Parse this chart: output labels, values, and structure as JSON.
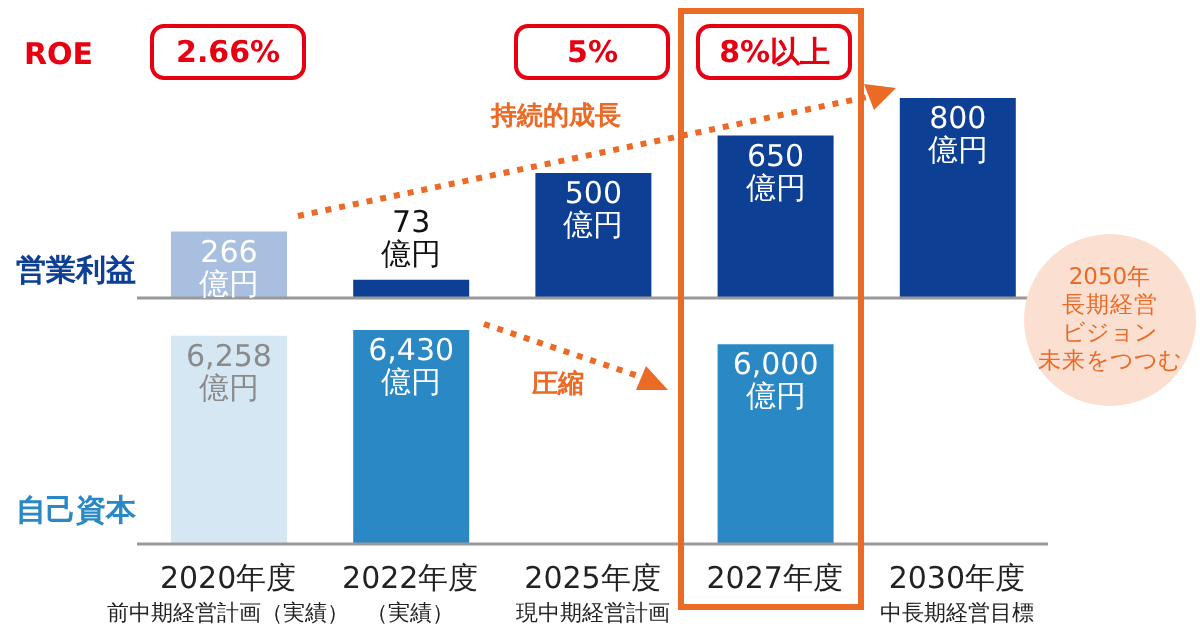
{
  "chart_data": [
    {
      "type": "other",
      "title": "ROE",
      "categories": [
        null,
        null,
        null,
        null,
        null
      ],
      "values": [
        2.66,
        null,
        5,
        8,
        null
      ],
      "value_labels": [
        "2.66%",
        null,
        "5%",
        "8%以上",
        null
      ],
      "color": "#e60012"
    },
    {
      "type": "bar",
      "ylabel": "営業利益",
      "categories": [
        null,
        null,
        null,
        null,
        null
      ],
      "values": [
        266,
        73,
        500,
        650,
        800
      ],
      "colors": [
        "#a9bfdf",
        "#0d3f94",
        "#0d3f94",
        "#0d3f94",
        "#0d3f94"
      ],
      "value_labels": [
        "266\n億円",
        "73\n億円",
        "500\n億円",
        "650\n億円",
        "800\n億円"
      ],
      "tick_labels": false,
      "annotations": [
        "持続的成長",
        "2050年",
        "長期経営",
        "ビジョン",
        "未来をつつむ"
      ]
    },
    {
      "type": "bar",
      "ylabel": "自己資本",
      "categories": [
        "2020年度",
        "2022年度",
        "2025年度",
        "2027年度",
        "2030年度"
      ],
      "values": [
        6258,
        6430,
        null,
        6000,
        null
      ],
      "colors": [
        "#d6e7f4",
        "#2a88c5",
        "#2a88c5",
        "#2a88c5",
        "#2a88c5"
      ],
      "value_labels": [
        "6,258\n億円",
        "6,430\n億円",
        null,
        "6,000\n億円",
        null
      ],
      "tick_labels": "x",
      "annotations": [
        "圧縮",
        "前中期経営計画（実績）",
        "（実績）",
        "現中期経営計画",
        "中長期経営目標"
      ]
    }
  ]
}
